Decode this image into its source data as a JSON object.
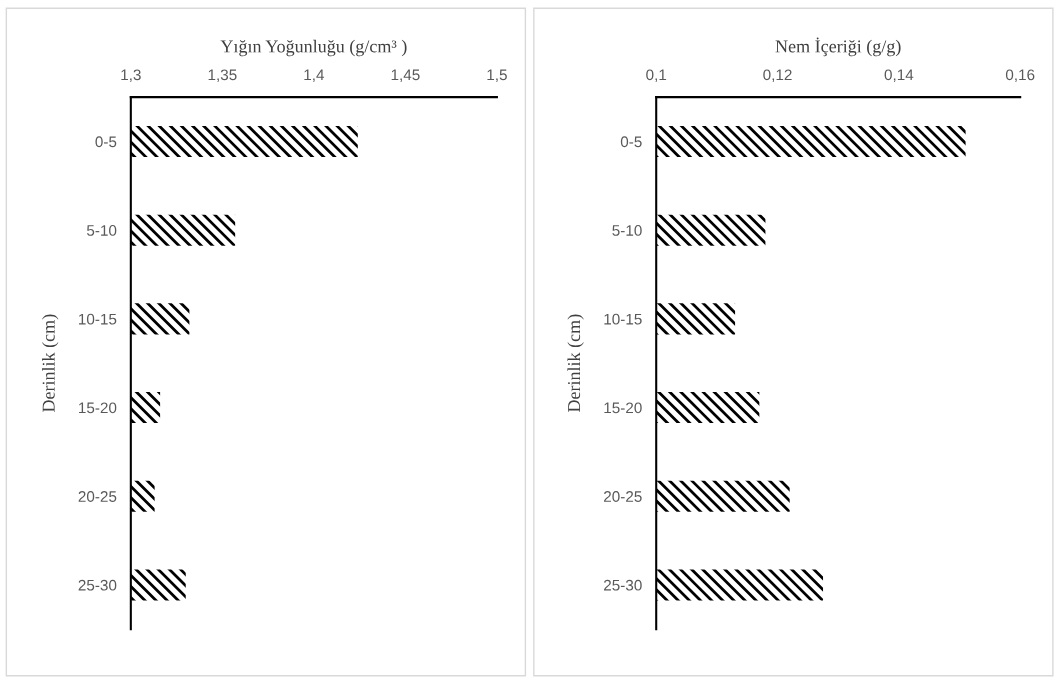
{
  "chart_data": [
    {
      "type": "bar",
      "orientation": "horizontal",
      "xlabel": "Yığın Yoğunluğu (g/cm³ )",
      "ylabel": "Derinlik (cm)",
      "categories": [
        "0-5",
        "5-10",
        "10-15",
        "15-20",
        "20-25",
        "25-30"
      ],
      "values": [
        1.424,
        1.357,
        1.332,
        1.316,
        1.313,
        1.33
      ],
      "color": "#000000",
      "xlim": [
        1.3,
        1.5
      ],
      "xticks": [
        {
          "value": 1.3,
          "label": "1,3"
        },
        {
          "value": 1.35,
          "label": "1,35"
        },
        {
          "value": 1.4,
          "label": "1,4"
        },
        {
          "value": 1.45,
          "label": "1,45"
        },
        {
          "value": 1.5,
          "label": "1,5"
        }
      ],
      "grid": false,
      "legend": false
    },
    {
      "type": "bar",
      "orientation": "horizontal",
      "xlabel": "Nem İçeriği (g/g)",
      "ylabel": "Derinlik (cm)",
      "categories": [
        "0-5",
        "5-10",
        "10-15",
        "15-20",
        "20-25",
        "25-30"
      ],
      "values": [
        0.151,
        0.118,
        0.113,
        0.117,
        0.122,
        0.1275
      ],
      "color": "#000000",
      "xlim": [
        0.1,
        0.16
      ],
      "xticks": [
        {
          "value": 0.1,
          "label": "0,1"
        },
        {
          "value": 0.12,
          "label": "0,12"
        },
        {
          "value": 0.14,
          "label": "0,14"
        },
        {
          "value": 0.16,
          "label": "0,16"
        }
      ],
      "grid": false,
      "legend": false
    }
  ]
}
